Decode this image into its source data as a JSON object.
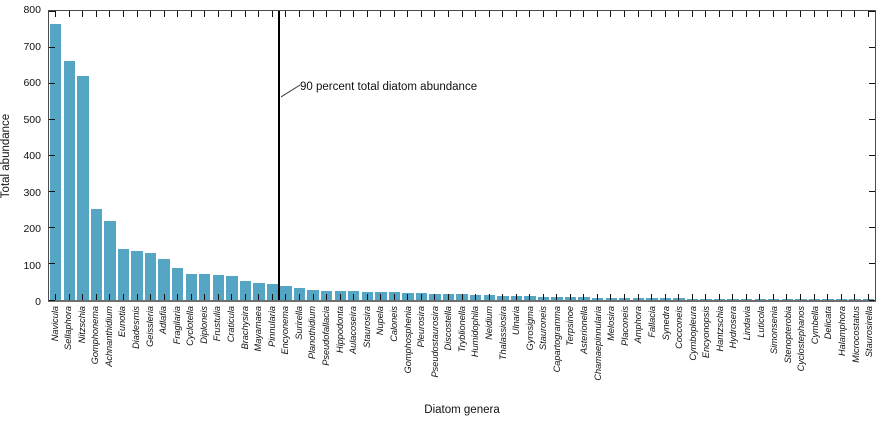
{
  "figure": {
    "ylabel": "Total abundance",
    "xlabel": "Diatom genera",
    "annotation_label": "90 percent total diatom abundance"
  },
  "chart_data": {
    "type": "bar",
    "title": "",
    "xlabel": "Diatom genera",
    "ylabel": "Total abundance",
    "ylim": [
      0,
      800
    ],
    "yticks": [
      0,
      100,
      200,
      300,
      400,
      500,
      600,
      700,
      800
    ],
    "grid": false,
    "legend": "none",
    "bar_color": "#55a5c5",
    "frame": "full-box-inward-ticks",
    "annotation": {
      "text": "90 percent total diatom abundance",
      "line_after_category": "Pinnularia",
      "line_after_index": 17
    },
    "categories": [
      "Navicula",
      "Sellaphora",
      "Nitzschia",
      "Gomphonema",
      "Achnanthidium",
      "Eunotia",
      "Diadesmis",
      "Geissleria",
      "Adlafia",
      "Fragilaria",
      "Cyclotella",
      "Diploneis",
      "Frustulia",
      "Craticula",
      "Brachysira",
      "Mayamaea",
      "Pinnularia",
      "Encyonema",
      "Surirella",
      "Planothidium",
      "Pseudofallacia",
      "Hippodonta",
      "Aulacoseira",
      "Staurosira",
      "Nupela",
      "Caloneis",
      "Gomphosphenia",
      "Pleurosira",
      "Pseudostaurosira",
      "Discostella",
      "Tryblionella",
      "Humidophila",
      "Neidium",
      "Thalassiosira",
      "Ulnaria",
      "Gyrosigma",
      "Stauroneis",
      "Capartogramma",
      "Terpsinoe",
      "Asterionella",
      "Chamaepinnularia",
      "Melosira",
      "Placoneis",
      "Amphora",
      "Fallacia",
      "Synedra",
      "Cocconeis",
      "Cymbopleura",
      "Encyonopsis",
      "Hantzschia",
      "Hydrosera",
      "Lindavia",
      "Luticola",
      "Simonsenia",
      "Stenopterobia",
      "Cyclostephanos",
      "Cymbella",
      "Delicata",
      "Halamphora",
      "Microcostatus",
      "Staurosirella"
    ],
    "values": [
      765,
      663,
      620,
      253,
      219,
      142,
      135,
      131,
      113,
      88,
      73,
      71,
      68,
      66,
      52,
      48,
      45,
      39,
      33,
      28,
      26,
      26,
      24,
      23,
      22,
      21,
      19,
      19,
      18,
      16,
      16,
      15,
      13,
      12,
      12,
      10,
      9,
      8,
      7,
      7,
      6,
      6,
      6,
      5,
      5,
      5,
      5,
      4,
      4,
      4,
      4,
      3,
      3,
      3,
      3,
      2,
      2,
      2,
      2,
      2,
      2
    ]
  }
}
